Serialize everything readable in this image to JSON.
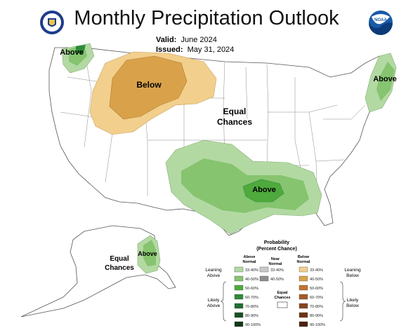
{
  "header": {
    "title": "Monthly Precipitation Outlook",
    "valid_label": "Valid:",
    "valid_value": "June 2024",
    "issued_label": "Issued:",
    "issued_value": "May 31, 2024",
    "noaa_text": "NOAA"
  },
  "map_labels": {
    "above_nw": "Above",
    "below": "Below",
    "equal_chances_1": "Equal",
    "equal_chances_2": "Chances",
    "above_ne": "Above",
    "above_south": "Above",
    "alaska_above": "Above",
    "alaska_equal_1": "Equal",
    "alaska_equal_2": "Chances"
  },
  "legend": {
    "title_1": "Probability",
    "title_2": "(Percent Chance)",
    "col_above_1": "Above",
    "col_above_2": "Normal",
    "col_near_1": "Near",
    "col_near_2": "Normal",
    "col_below_1": "Below",
    "col_below_2": "Normal",
    "leaning_above_1": "Leaning",
    "leaning_above_2": "Above",
    "likely_above_1": "Likely",
    "likely_above_2": "Above",
    "leaning_below_1": "Leaning",
    "leaning_below_2": "Below",
    "likely_below_1": "Likely",
    "likely_below_2": "Below",
    "equal_1": "Equal",
    "equal_2": "Chances",
    "above_rows": [
      {
        "label": "33-40%",
        "color": "#b3d9a3"
      },
      {
        "label": "40-50%",
        "color": "#86c46f"
      },
      {
        "label": "50-60%",
        "color": "#4eaa3c"
      },
      {
        "label": "60-70%",
        "color": "#2f8a3a"
      },
      {
        "label": "70-80%",
        "color": "#1f6e2f"
      },
      {
        "label": "80-90%",
        "color": "#165224"
      },
      {
        "label": "90-100%",
        "color": "#0f3816"
      }
    ],
    "near_rows": [
      {
        "label": "33-40%",
        "color": "#c8c8c8"
      },
      {
        "label": "40-50%",
        "color": "#8e8e8e"
      }
    ],
    "below_rows": [
      {
        "label": "33-40%",
        "color": "#f2cf8c"
      },
      {
        "label": "40-50%",
        "color": "#d9a24a"
      },
      {
        "label": "50-60%",
        "color": "#c2722e"
      },
      {
        "label": "60-70%",
        "color": "#a55a25"
      },
      {
        "label": "70-80%",
        "color": "#86441a"
      },
      {
        "label": "80-90%",
        "color": "#6b3310"
      },
      {
        "label": "90-100%",
        "color": "#4a2009"
      }
    ]
  }
}
